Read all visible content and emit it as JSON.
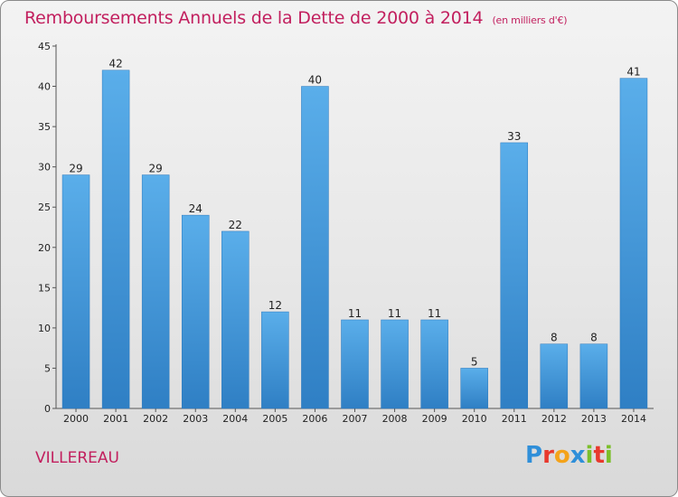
{
  "chart_data": {
    "type": "bar",
    "title": "Remboursements Annuels de la Dette de 2000 à 2014",
    "subtitle": "(en milliers d'€)",
    "categories": [
      "2000",
      "2001",
      "2002",
      "2003",
      "2004",
      "2005",
      "2006",
      "2007",
      "2008",
      "2009",
      "2010",
      "2011",
      "2012",
      "2013",
      "2014"
    ],
    "values": [
      29,
      42,
      29,
      24,
      22,
      12,
      40,
      11,
      11,
      11,
      5,
      33,
      8,
      8,
      41
    ],
    "ylim": [
      0,
      45
    ],
    "yticks": [
      0,
      5,
      10,
      15,
      20,
      25,
      30,
      35,
      40,
      45
    ],
    "grid": false,
    "bar_color": "#3a8fd6"
  },
  "commune": "VILLEREAU",
  "logo": {
    "letters": [
      {
        "ch": "P",
        "color": "#2f8fd9"
      },
      {
        "ch": "r",
        "color": "#e8392d"
      },
      {
        "ch": "o",
        "color": "#f4a31a"
      },
      {
        "ch": "x",
        "color": "#2f8fd9"
      },
      {
        "ch": "i",
        "color": "#7bbf2a"
      },
      {
        "ch": "t",
        "color": "#e8392d"
      },
      {
        "ch": "i",
        "color": "#7bbf2a"
      }
    ]
  }
}
